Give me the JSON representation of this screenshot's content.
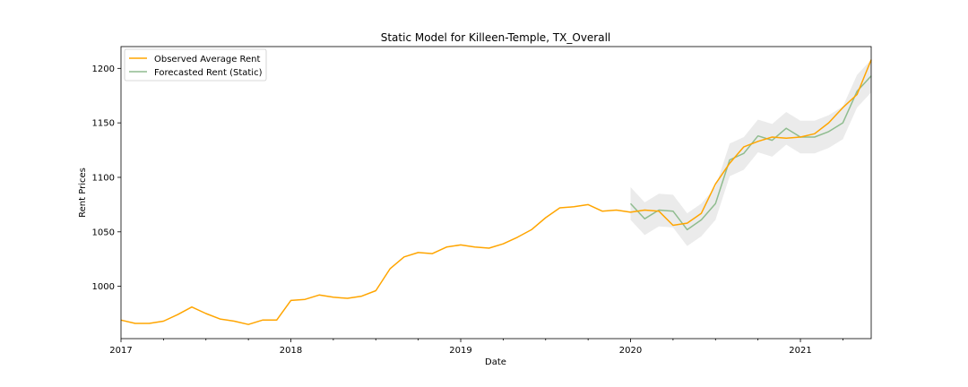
{
  "chart_data": {
    "type": "line",
    "title": "Static Model for Killeen-Temple, TX_Overall",
    "xlabel": "Date",
    "ylabel": "Rent Prices",
    "xlim": [
      "2017-01",
      "2021-06"
    ],
    "ylim": [
      952,
      1220
    ],
    "x_ticks": [
      {
        "label": "2017",
        "x": "2017-01"
      },
      {
        "label": "2018",
        "x": "2018-01"
      },
      {
        "label": "2019",
        "x": "2019-01"
      },
      {
        "label": "2020",
        "x": "2020-01"
      },
      {
        "label": "2021",
        "x": "2021-01"
      }
    ],
    "y_ticks": [
      1000,
      1050,
      1100,
      1150,
      1200
    ],
    "grid": false,
    "legend": "top-left",
    "colors": {
      "observed": "#ffa500",
      "forecast": "#8fbc8f",
      "confidence_band": "#d3d3d3"
    },
    "series": [
      {
        "name": "Observed Average Rent",
        "x": [
          "2017-01",
          "2017-02",
          "2017-03",
          "2017-04",
          "2017-05",
          "2017-06",
          "2017-07",
          "2017-08",
          "2017-09",
          "2017-10",
          "2017-11",
          "2017-12",
          "2018-01",
          "2018-02",
          "2018-03",
          "2018-04",
          "2018-05",
          "2018-06",
          "2018-07",
          "2018-08",
          "2018-09",
          "2018-10",
          "2018-11",
          "2018-12",
          "2019-01",
          "2019-02",
          "2019-03",
          "2019-04",
          "2019-05",
          "2019-06",
          "2019-07",
          "2019-08",
          "2019-09",
          "2019-10",
          "2019-11",
          "2019-12",
          "2020-01",
          "2020-02",
          "2020-03",
          "2020-04",
          "2020-05",
          "2020-06",
          "2020-07",
          "2020-08",
          "2020-09",
          "2020-10",
          "2020-11",
          "2020-12",
          "2021-01",
          "2021-02",
          "2021-03",
          "2021-04",
          "2021-05",
          "2021-06"
        ],
        "values": [
          969,
          966,
          966,
          968,
          974,
          981,
          975,
          970,
          968,
          965,
          969,
          969,
          987,
          988,
          992,
          990,
          989,
          991,
          996,
          1016,
          1027,
          1031,
          1030,
          1036,
          1038,
          1036,
          1035,
          1039,
          1045,
          1052,
          1063,
          1072,
          1073,
          1075,
          1069,
          1070,
          1068,
          1070,
          1069,
          1056,
          1058,
          1067,
          1094,
          1113,
          1128,
          1133,
          1137,
          1136,
          1137,
          1140,
          1150,
          1164,
          1176,
          1208
        ]
      },
      {
        "name": "Forecasted Rent (Static)",
        "x": [
          "2020-01",
          "2020-02",
          "2020-03",
          "2020-04",
          "2020-05",
          "2020-06",
          "2020-07",
          "2020-08",
          "2020-09",
          "2020-10",
          "2020-11",
          "2020-12",
          "2021-01",
          "2021-02",
          "2021-03",
          "2021-04",
          "2021-05",
          "2021-06"
        ],
        "values": [
          1076,
          1062,
          1070,
          1069,
          1052,
          1061,
          1076,
          1116,
          1122,
          1138,
          1134,
          1145,
          1137,
          1137,
          1142,
          1150,
          1179,
          1193
        ],
        "lower": [
          1061,
          1047,
          1055,
          1054,
          1037,
          1046,
          1061,
          1101,
          1107,
          1123,
          1119,
          1130,
          1122,
          1122,
          1127,
          1135,
          1164,
          1178
        ],
        "upper": [
          1091,
          1077,
          1085,
          1084,
          1067,
          1076,
          1091,
          1131,
          1137,
          1153,
          1149,
          1160,
          1152,
          1152,
          1157,
          1165,
          1194,
          1208
        ]
      }
    ]
  }
}
